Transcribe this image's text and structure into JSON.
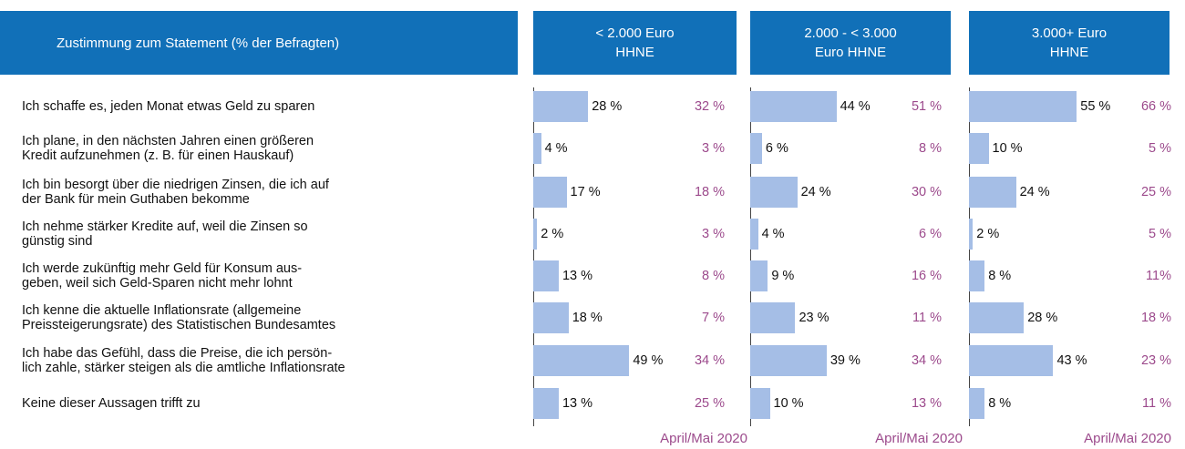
{
  "chart_data": {
    "type": "bar",
    "title": "Zustimmung zum Statement (% der Befragten)",
    "categories": [
      "Ich schaffe es, jeden Monat etwas Geld zu sparen",
      "Ich plane, in den nächsten Jahren einen größeren\nKredit aufzunehmen (z. B. für einen Hauskauf)",
      "Ich bin besorgt über die niedrigen Zinsen, die ich auf\nder Bank für mein Guthaben bekomme",
      "Ich nehme stärker Kredite auf, weil die Zinsen so\ngünstig sind",
      "Ich werde zukünftig mehr Geld für Konsum aus-\ngeben, weil sich Geld-Sparen nicht mehr lohnt",
      "Ich kenne die aktuelle Inflationsrate (allgemeine\nPreissteigerungsrate) des Statistischen Bundesamtes",
      "Ich habe das Gefühl, dass die Preise, die ich persön-\nlich zahle, stärker steigen als die amtliche Inflationsrate",
      "Keine dieser Aussagen trifft zu"
    ],
    "xlim": [
      0,
      100
    ],
    "color": "#a5bee6",
    "comparison_color": "#9c4a8c",
    "header_color": "#1170b8",
    "panels": [
      {
        "title": "< 2.000 Euro\nHHNE",
        "values": [
          28,
          4,
          17,
          2,
          13,
          18,
          49,
          13
        ],
        "value_labels": [
          "28 %",
          "4 %",
          "17 %",
          "2 %",
          "13 %",
          "18 %",
          "49 %",
          "13 %"
        ],
        "comparison_name": "April/Mai 2020",
        "comparison_values": [
          32,
          3,
          18,
          3,
          8,
          7,
          34,
          25
        ],
        "comparison_labels": [
          "32 %",
          "3 %",
          "18 %",
          "3 %",
          "8 %",
          "7 %",
          "34 %",
          "25 %"
        ]
      },
      {
        "title": "2.000 - < 3.000\nEuro HHNE",
        "values": [
          44,
          6,
          24,
          4,
          9,
          23,
          39,
          10
        ],
        "value_labels": [
          "44 %",
          "6 %",
          "24 %",
          "4 %",
          "9 %",
          "23 %",
          "39 %",
          "10 %"
        ],
        "comparison_name": "April/Mai 2020",
        "comparison_values": [
          51,
          8,
          30,
          6,
          16,
          11,
          34,
          13
        ],
        "comparison_labels": [
          "51 %",
          "8 %",
          "30 %",
          "6 %",
          "16 %",
          "11 %",
          "34 %",
          "13 %"
        ]
      },
      {
        "title": "3.000+ Euro\nHHNE",
        "values": [
          55,
          10,
          24,
          2,
          8,
          28,
          43,
          8
        ],
        "value_labels": [
          "55 %",
          "10 %",
          "24 %",
          "2 %",
          "8 %",
          "28 %",
          "43 %",
          "8 %"
        ],
        "comparison_name": "April/Mai 2020",
        "comparison_values": [
          66,
          5,
          25,
          5,
          11,
          18,
          23,
          11
        ],
        "comparison_labels": [
          "66 %",
          "5 %",
          "25 %",
          "5 %",
          "11%",
          "18 %",
          "23 %",
          "11 %"
        ]
      }
    ]
  }
}
